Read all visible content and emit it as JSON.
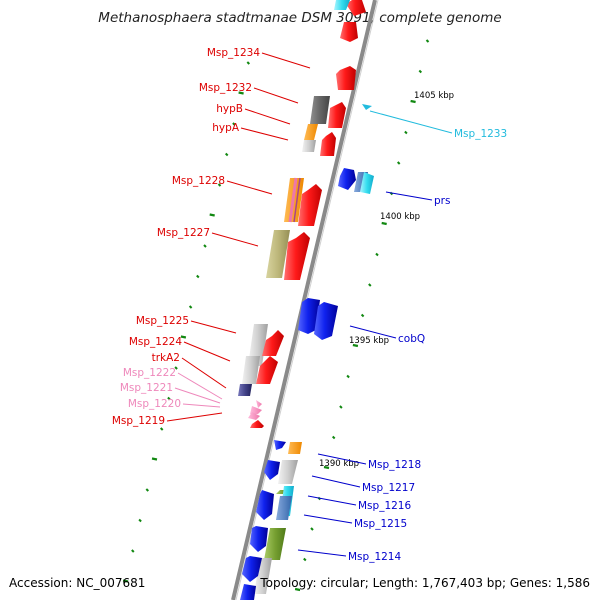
{
  "title": "Methanosphaera stadtmanae DSM 3091, complete genome",
  "footer": {
    "accession": "Accession: NC_007681",
    "topology": "Topology: circular; Length: 1,767,403 bp; Genes: 1,586"
  },
  "scale_labels": [
    "1405 kbp",
    "1400 kbp",
    "1395 kbp",
    "1390 kbp"
  ],
  "colors": {
    "backbone": "#8a8a8a",
    "reverse_label": "#dd0000",
    "forward_label": "#0000cc",
    "tick": "#118811",
    "highlight_cyan": "#22bbdd",
    "highlight_pink": "#ee88bb"
  },
  "left_labels": [
    {
      "text": "Msp_1234",
      "color": "#dd0000"
    },
    {
      "text": "Msp_1232",
      "color": "#dd0000"
    },
    {
      "text": "hypB",
      "color": "#dd0000"
    },
    {
      "text": "hypA",
      "color": "#dd0000"
    },
    {
      "text": "Msp_1228",
      "color": "#dd0000"
    },
    {
      "text": "Msp_1227",
      "color": "#dd0000"
    },
    {
      "text": "Msp_1225",
      "color": "#dd0000"
    },
    {
      "text": "Msp_1224",
      "color": "#dd0000"
    },
    {
      "text": "trkA2",
      "color": "#dd0000"
    },
    {
      "text": "Msp_1222",
      "color": "#ee88bb"
    },
    {
      "text": "Msp_1221",
      "color": "#ee88bb"
    },
    {
      "text": "Msp_1220",
      "color": "#ee88bb"
    },
    {
      "text": "Msp_1219",
      "color": "#dd0000"
    }
  ],
  "right_labels": [
    {
      "text": "Msp_1233",
      "color": "#22bbdd"
    },
    {
      "text": "prs",
      "color": "#0000cc"
    },
    {
      "text": "cobQ",
      "color": "#0000cc"
    },
    {
      "text": "Msp_1218",
      "color": "#0000cc"
    },
    {
      "text": "Msp_1217",
      "color": "#0000cc"
    },
    {
      "text": "Msp_1216",
      "color": "#0000cc"
    },
    {
      "text": "Msp_1215",
      "color": "#0000cc"
    },
    {
      "text": "Msp_1214",
      "color": "#0000cc"
    }
  ]
}
